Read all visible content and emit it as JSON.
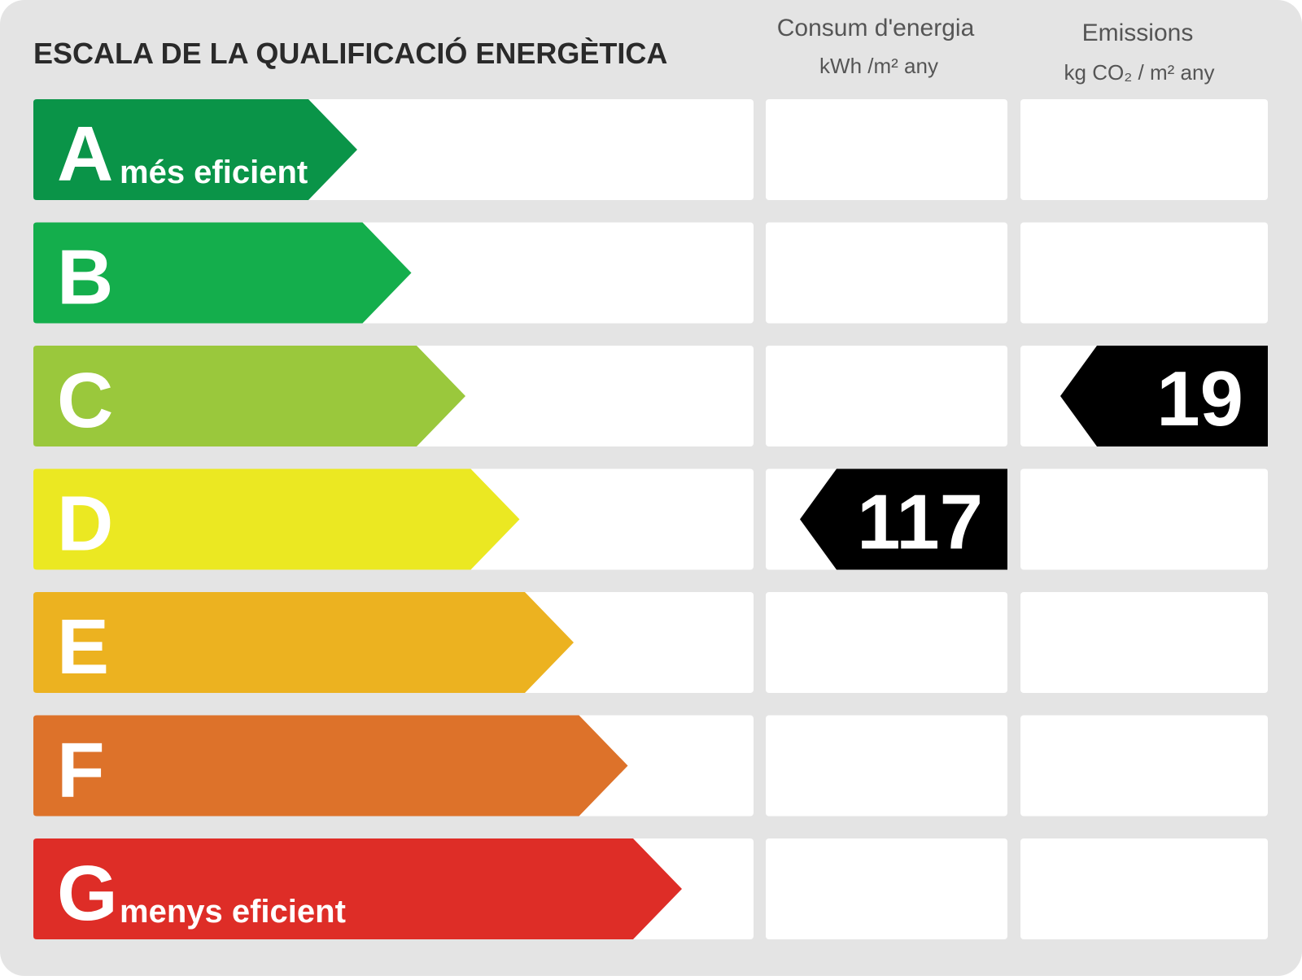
{
  "title": "ESCALA DE LA QUALIFICACIÓ ENERGÈTICA",
  "columns": {
    "consumption": {
      "title": "Consum d'energia",
      "unit": "kWh /m² any"
    },
    "emissions": {
      "title": "Emissions",
      "unit": "kg CO₂ / m² any"
    }
  },
  "rows": [
    {
      "letter": "A",
      "note": "més eficient"
    },
    {
      "letter": "B"
    },
    {
      "letter": "C",
      "emissions": 19
    },
    {
      "letter": "D",
      "consumption": 117
    },
    {
      "letter": "E"
    },
    {
      "letter": "F"
    },
    {
      "letter": "G",
      "note": "menys eficient"
    }
  ]
}
